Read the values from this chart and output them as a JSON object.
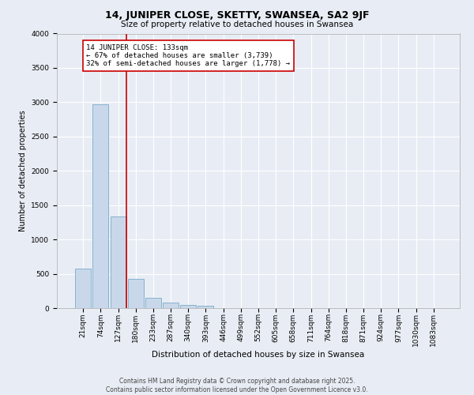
{
  "title": "14, JUNIPER CLOSE, SKETTY, SWANSEA, SA2 9JF",
  "subtitle": "Size of property relative to detached houses in Swansea",
  "xlabel": "Distribution of detached houses by size in Swansea",
  "ylabel": "Number of detached properties",
  "footer_line1": "Contains HM Land Registry data © Crown copyright and database right 2025.",
  "footer_line2": "Contains public sector information licensed under the Open Government Licence v3.0.",
  "bar_color": "#c8d8ea",
  "bar_edge_color": "#7aaac8",
  "background_color": "#e8edf5",
  "grid_color": "#ffffff",
  "annotation_text": "14 JUNIPER CLOSE: 133sqm\n← 67% of detached houses are smaller (3,739)\n32% of semi-detached houses are larger (1,778) →",
  "annotation_box_color": "#ffffff",
  "annotation_border_color": "#cc0000",
  "vline_color": "#cc0000",
  "vline_x": 2.45,
  "ylim": [
    0,
    4000
  ],
  "yticks": [
    0,
    500,
    1000,
    1500,
    2000,
    2500,
    3000,
    3500,
    4000
  ],
  "categories": [
    "21sqm",
    "74sqm",
    "127sqm",
    "180sqm",
    "233sqm",
    "287sqm",
    "340sqm",
    "393sqm",
    "446sqm",
    "499sqm",
    "552sqm",
    "605sqm",
    "658sqm",
    "711sqm",
    "764sqm",
    "818sqm",
    "871sqm",
    "924sqm",
    "977sqm",
    "1030sqm",
    "1083sqm"
  ],
  "values": [
    580,
    2970,
    1340,
    430,
    155,
    80,
    45,
    35,
    0,
    0,
    0,
    0,
    0,
    0,
    0,
    0,
    0,
    0,
    0,
    0,
    0
  ],
  "title_fontsize": 9,
  "subtitle_fontsize": 7.5,
  "xlabel_fontsize": 7.5,
  "ylabel_fontsize": 7,
  "tick_fontsize": 6.5,
  "annotation_fontsize": 6.5,
  "footer_fontsize": 5.5
}
